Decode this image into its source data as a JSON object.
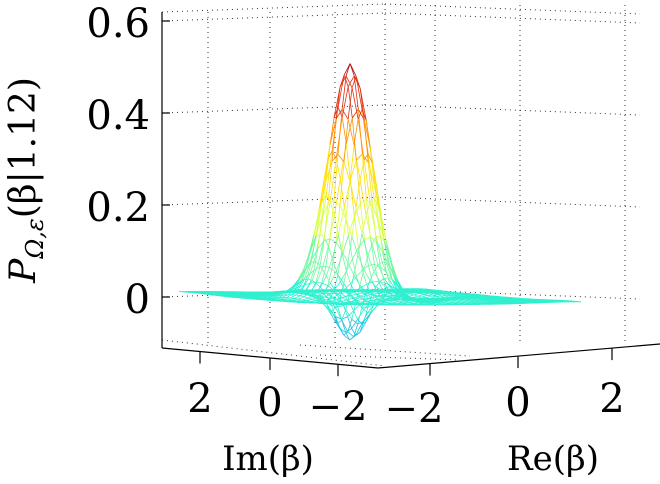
{
  "chart_data": {
    "type": "surface-3d-mesh",
    "title": "",
    "zlabel": "P_{Ω,ε}(β|1.12)",
    "zlabel_parts": {
      "P": "P",
      "subscript": "Ω,ε",
      "args": "(β|1.12)"
    },
    "xlabel": "Re(β)",
    "ylabel": "Im(β)",
    "z_ticks": [
      0,
      0.2,
      0.4,
      0.6
    ],
    "z_tick_labels": [
      "0",
      "0.2",
      "0.4",
      "0.6"
    ],
    "zlim": [
      -0.1,
      0.62
    ],
    "re_ticks": [
      -2,
      0,
      2
    ],
    "re_tick_labels": [
      "−2",
      "0",
      "2"
    ],
    "im_ticks": [
      -2,
      0,
      2
    ],
    "im_tick_labels": [
      "2",
      "0",
      "−2"
    ],
    "re_range": [
      -3,
      3
    ],
    "im_range": [
      -3,
      3
    ],
    "grid": true,
    "peak_value": 0.52,
    "trough_value": -0.09,
    "colormap": [
      "#1fc3e6",
      "#2ff0d0",
      "#6ff8a0",
      "#d8ff40",
      "#ffe000",
      "#ff9000",
      "#e03010",
      "#b01010"
    ]
  }
}
